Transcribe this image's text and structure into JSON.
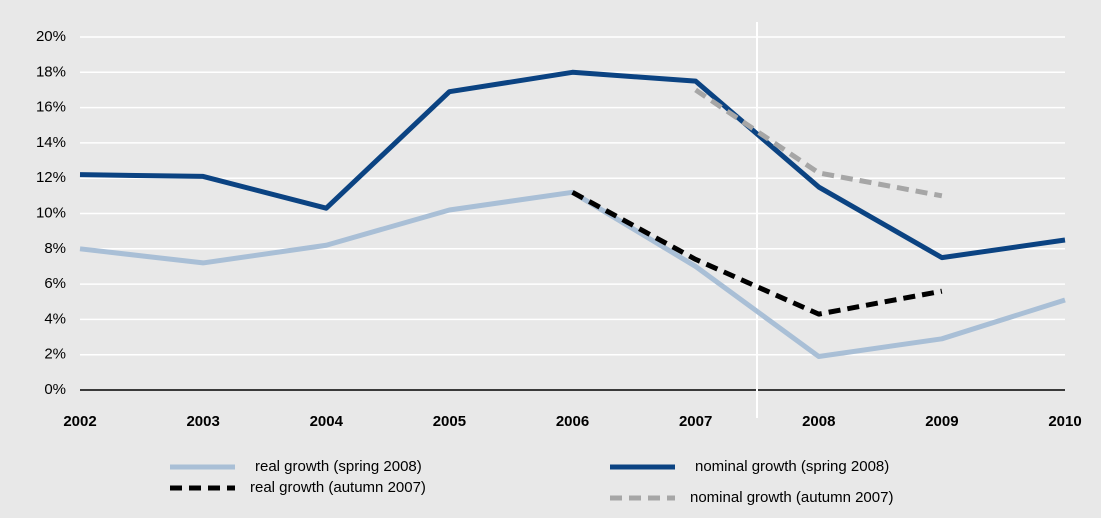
{
  "chart_data": {
    "type": "line",
    "categories": [
      "2002",
      "2003",
      "2004",
      "2005",
      "2006",
      "2007",
      "2008",
      "2009",
      "2010"
    ],
    "series": [
      {
        "name": "real growth (spring 2008)",
        "color": "#a9bfd6",
        "dashed": false,
        "values": [
          8.0,
          7.2,
          8.2,
          10.2,
          11.2,
          7.0,
          1.9,
          2.9,
          5.1
        ]
      },
      {
        "name": "nominal growth (spring 2008)",
        "color": "#0b4382",
        "dashed": false,
        "values": [
          12.2,
          12.1,
          10.3,
          16.9,
          18.0,
          17.5,
          11.5,
          7.5,
          8.5
        ]
      },
      {
        "name": "real growth (autumn 2007)",
        "color": "#000000",
        "dashed": true,
        "values": [
          null,
          null,
          null,
          null,
          11.2,
          7.4,
          4.3,
          5.6,
          null
        ]
      },
      {
        "name": "nominal growth (autumn 2007)",
        "color": "#a6a6a6",
        "dashed": true,
        "values": [
          null,
          null,
          null,
          null,
          null,
          17.0,
          12.3,
          11.0,
          null
        ]
      }
    ],
    "ylim": [
      0,
      20
    ],
    "yticks": [
      {
        "value": 0,
        "label": "0%"
      },
      {
        "value": 2,
        "label": "2%"
      },
      {
        "value": 4,
        "label": "4%"
      },
      {
        "value": 6,
        "label": "6%"
      },
      {
        "value": 8,
        "label": "8%"
      },
      {
        "value": 10,
        "label": "10%"
      },
      {
        "value": 12,
        "label": "12%"
      },
      {
        "value": 14,
        "label": "14%"
      },
      {
        "value": 16,
        "label": "16%"
      },
      {
        "value": 18,
        "label": "18%"
      },
      {
        "value": 20,
        "label": "20%"
      }
    ],
    "grid": true
  }
}
